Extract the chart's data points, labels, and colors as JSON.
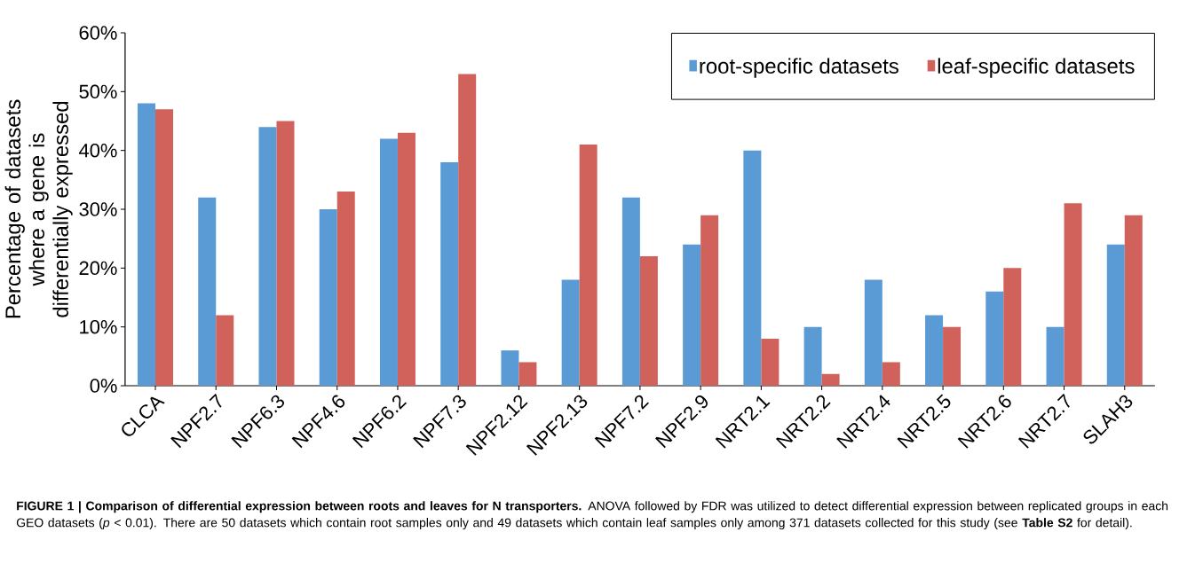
{
  "chart_data": {
    "type": "bar",
    "ylabel": "Percentage of datasets where a gene is differentially expressed",
    "categories": [
      "CLCA",
      "NPF2.7",
      "NPF6.3",
      "NPF4.6",
      "NPF6.2",
      "NPF7.3",
      "NPF2.12",
      "NPF2.13",
      "NPF7.2",
      "NPF2.9",
      "NRT2.1",
      "NRT2.2",
      "NRT2.4",
      "NRT2.5",
      "NRT2.6",
      "NRT2.7",
      "SLAH3"
    ],
    "series": [
      {
        "name": "root-specific datasets",
        "color": "#5b9bd5",
        "values": [
          48,
          32,
          44,
          30,
          42,
          38,
          6,
          18,
          32,
          24,
          40,
          10,
          18,
          12,
          16,
          10,
          24
        ]
      },
      {
        "name": "leaf-specific datasets",
        "color": "#d0625b",
        "values": [
          47,
          12,
          45,
          33,
          43,
          53,
          4,
          41,
          22,
          29,
          8,
          2,
          4,
          10,
          20,
          31,
          29
        ]
      }
    ],
    "ylim": [
      0,
      60
    ],
    "yticks": [
      {
        "value": 0,
        "label": "0%"
      },
      {
        "value": 10,
        "label": "10%"
      },
      {
        "value": 20,
        "label": "20%"
      },
      {
        "value": 30,
        "label": "30%"
      },
      {
        "value": 40,
        "label": "40%"
      },
      {
        "value": 50,
        "label": "50%"
      },
      {
        "value": 60,
        "label": "60%"
      }
    ],
    "legend": "top right",
    "grid": false,
    "annotations": [
      "**FIGURE 1 | Comparison of differential expression between roots and leaves for N transporters.** ANOVA followed by FDR was utilized to detect differential expression between replicated groups in each GEO datasets (*p* < 0.01). There are 50 datasets which contain root samples only and 49 datasets which contain leaf samples only among 371 datasets collected for this study (see **Table S2** for detail)."
    ]
  }
}
